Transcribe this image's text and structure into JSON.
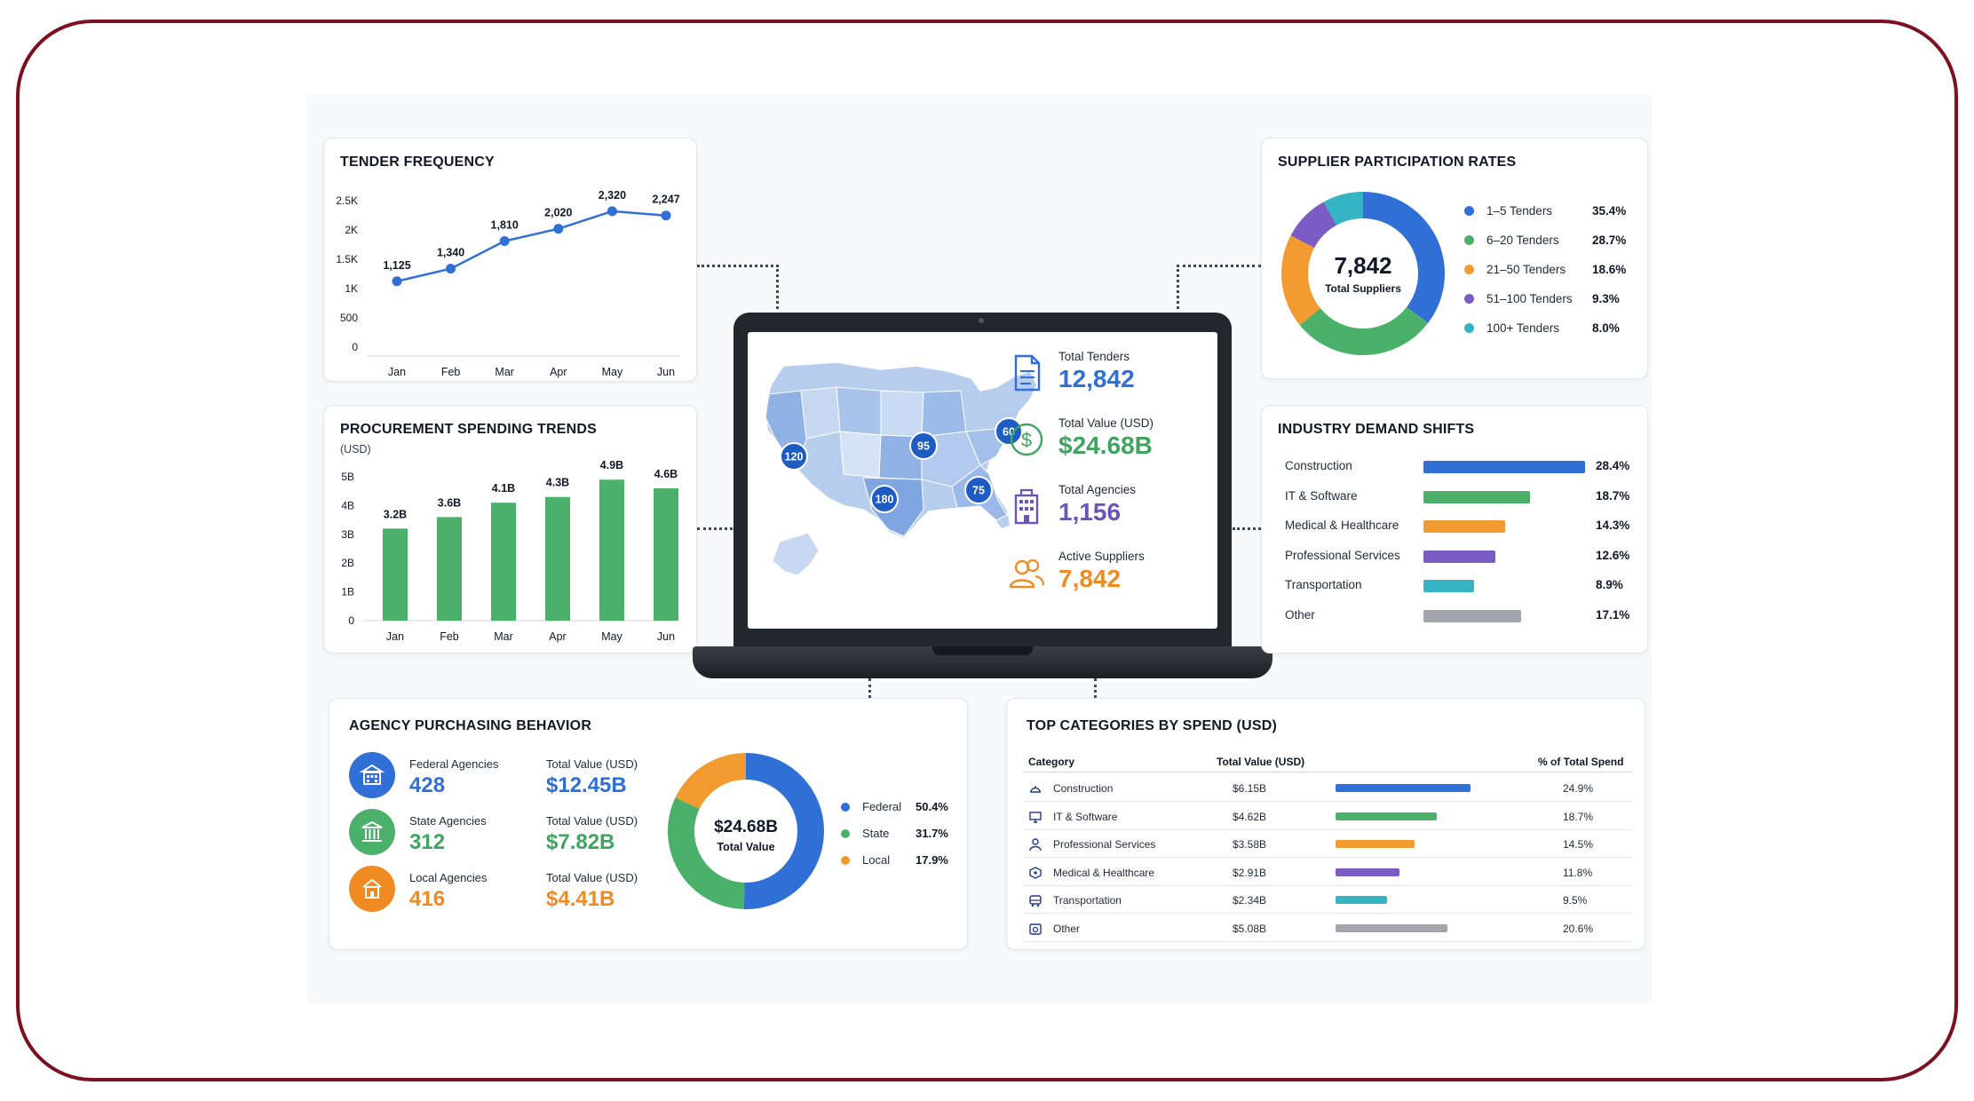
{
  "tender_frequency": {
    "title": "TENDER FREQUENCY",
    "chart_data": {
      "type": "line",
      "categories": [
        "Jan",
        "Feb",
        "Mar",
        "Apr",
        "May",
        "Jun"
      ],
      "values": [
        1125,
        1340,
        1810,
        2020,
        2320,
        2247
      ],
      "data_labels": [
        "1,125",
        "1,340",
        "1,810",
        "2,020",
        "2,320",
        "2,247"
      ],
      "y_ticks": [
        "0",
        "500",
        "1K",
        "1.5K",
        "2K",
        "2.5K"
      ],
      "ylim": [
        0,
        2500
      ],
      "color": "#2f6fd6"
    }
  },
  "procurement_spending": {
    "title": "PROCUREMENT SPENDING TRENDS",
    "subtitle": "(USD)",
    "chart_data": {
      "type": "bar",
      "categories": [
        "Jan",
        "Feb",
        "Mar",
        "Apr",
        "May",
        "Jun"
      ],
      "values": [
        3.2,
        3.6,
        4.1,
        4.3,
        4.9,
        4.6
      ],
      "data_labels": [
        "3.2B",
        "3.6B",
        "4.1B",
        "4.3B",
        "4.9B",
        "4.6B"
      ],
      "y_ticks": [
        "0",
        "1B",
        "2B",
        "3B",
        "4B",
        "5B"
      ],
      "ylim": [
        0,
        5
      ],
      "color": "#4bb06a"
    }
  },
  "laptop": {
    "map_badges": [
      "120",
      "95",
      "60",
      "180",
      "75"
    ],
    "kpis": [
      {
        "label": "Total Tenders",
        "value": "12,842",
        "icon": "document-icon",
        "color": "#2f6fd6"
      },
      {
        "label": "Total Value (USD)",
        "value": "$24.68B",
        "icon": "dollar-icon",
        "color": "#3fa45f"
      },
      {
        "label": "Total Agencies",
        "value": "1,156",
        "icon": "building-icon",
        "color": "#6b54b8"
      },
      {
        "label": "Active Suppliers",
        "value": "7,842",
        "icon": "users-icon",
        "color": "#ef8b22"
      }
    ]
  },
  "supplier_participation": {
    "title": "SUPPLIER PARTICIPATION RATES",
    "center_value": "7,842",
    "center_label": "Total Suppliers",
    "chart_data": {
      "type": "pie",
      "labels": [
        "1–5 Tenders",
        "6–20 Tenders",
        "21–50 Tenders",
        "51–100 Tenders",
        "100+ Tenders"
      ],
      "values": [
        35.4,
        28.7,
        18.6,
        9.3,
        8.0
      ],
      "pct_labels": [
        "35.4%",
        "28.7%",
        "18.6%",
        "9.3%",
        "8.0%"
      ],
      "colors": [
        "#2f6fd6",
        "#4bb06a",
        "#f29b30",
        "#7b5cc4",
        "#35b4c4"
      ]
    }
  },
  "industry_demand": {
    "title": "INDUSTRY DEMAND SHIFTS",
    "chart_data": {
      "type": "bar",
      "orientation": "horizontal",
      "categories": [
        "Construction",
        "IT & Software",
        "Medical & Healthcare",
        "Professional Services",
        "Transportation",
        "Other"
      ],
      "values": [
        28.4,
        18.7,
        14.3,
        12.6,
        8.9,
        17.1
      ],
      "pct_labels": [
        "28.4%",
        "18.7%",
        "14.3%",
        "12.6%",
        "8.9%",
        "17.1%"
      ],
      "colors": [
        "#2f6fd6",
        "#4bb06a",
        "#f29b30",
        "#7b5cc4",
        "#35b4c4",
        "#a3a7ad"
      ]
    }
  },
  "agency_behavior": {
    "title": "AGENCY PURCHASING BEHAVIOR",
    "value_label": "Total Value (USD)",
    "rows": [
      {
        "name": "Federal Agencies",
        "count": "428",
        "value": "$12.45B",
        "color": "#2f6fd6"
      },
      {
        "name": "State Agencies",
        "count": "312",
        "value": "$7.82B",
        "color": "#4bb06a"
      },
      {
        "name": "Local Agencies",
        "count": "416",
        "value": "$4.41B",
        "color": "#ef8b22"
      }
    ],
    "center_value": "$24.68B",
    "center_label": "Total Value",
    "chart_data": {
      "type": "pie",
      "labels": [
        "Federal",
        "State",
        "Local"
      ],
      "values": [
        50.4,
        31.7,
        17.9
      ],
      "pct_labels": [
        "50.4%",
        "31.7%",
        "17.9%"
      ],
      "colors": [
        "#2f6fd6",
        "#4bb06a",
        "#f29b30"
      ]
    }
  },
  "top_categories": {
    "title": "TOP CATEGORIES BY SPEND (USD)",
    "headers": [
      "Category",
      "Total Value (USD)",
      "% of Total Spend"
    ],
    "chart_data": {
      "type": "table",
      "rows": [
        {
          "category": "Construction",
          "value": "$6.15B",
          "pct": "24.9%",
          "share": 24.9,
          "color": "#2f6fd6",
          "icon": "hardhat-icon"
        },
        {
          "category": "IT & Software",
          "value": "$4.62B",
          "pct": "18.7%",
          "share": 18.7,
          "color": "#4bb06a",
          "icon": "monitor-icon"
        },
        {
          "category": "Professional Services",
          "value": "$3.58B",
          "pct": "14.5%",
          "share": 14.5,
          "color": "#f29b30",
          "icon": "person-icon"
        },
        {
          "category": "Medical & Healthcare",
          "value": "$2.91B",
          "pct": "11.8%",
          "share": 11.8,
          "color": "#7b5cc4",
          "icon": "medical-icon"
        },
        {
          "category": "Transportation",
          "value": "$2.34B",
          "pct": "9.5%",
          "share": 9.5,
          "color": "#35b4c4",
          "icon": "bus-icon"
        },
        {
          "category": "Other",
          "value": "$5.08B",
          "pct": "20.6%",
          "share": 20.6,
          "color": "#a3a7ad",
          "icon": "box-icon"
        }
      ]
    }
  }
}
